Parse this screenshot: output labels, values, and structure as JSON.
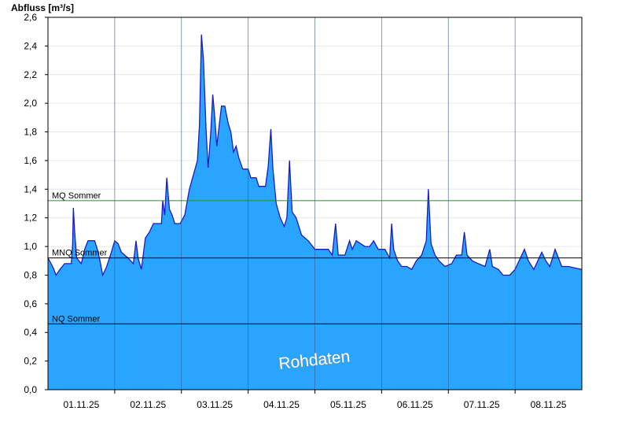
{
  "chart_data": {
    "type": "area",
    "ylabel": "Abfluss [m³/s]",
    "ylim": [
      0,
      2.6
    ],
    "yticks": [
      "0,0",
      "0,2",
      "0,4",
      "0,6",
      "0,8",
      "1,0",
      "1,2",
      "1,4",
      "1,6",
      "1,8",
      "2,0",
      "2,2",
      "2,4",
      "2,6"
    ],
    "xlim": [
      0,
      8
    ],
    "xticks": [
      "01.11.25",
      "02.11.25",
      "03.11.25",
      "04.11.25",
      "05.11.25",
      "06.11.25",
      "07.11.25",
      "08.11.25"
    ],
    "grid": true,
    "watermark": "Rohdaten",
    "colors": {
      "fill": "#2aa5ff",
      "line": "#1a1ac8",
      "mq": "#2e8b2e",
      "mnq": "#000000",
      "nq": "#000000"
    },
    "reference_lines": [
      {
        "name": "MQ Sommer",
        "value": 1.32
      },
      {
        "name": "MNQ Sommer",
        "value": 0.92
      },
      {
        "name": "NQ Sommer",
        "value": 0.46
      }
    ],
    "series": [
      {
        "points": [
          [
            0.0,
            0.92
          ],
          [
            0.08,
            0.85
          ],
          [
            0.12,
            0.8
          ],
          [
            0.18,
            0.84
          ],
          [
            0.25,
            0.88
          ],
          [
            0.35,
            0.88
          ],
          [
            0.37,
            1.02
          ],
          [
            0.38,
            1.27
          ],
          [
            0.4,
            1.1
          ],
          [
            0.43,
            0.92
          ],
          [
            0.5,
            0.88
          ],
          [
            0.55,
            0.98
          ],
          [
            0.6,
            1.04
          ],
          [
            0.7,
            1.04
          ],
          [
            0.74,
            0.98
          ],
          [
            0.78,
            0.9
          ],
          [
            0.82,
            0.8
          ],
          [
            0.88,
            0.86
          ],
          [
            0.95,
            0.96
          ],
          [
            1.0,
            1.04
          ],
          [
            1.05,
            1.02
          ],
          [
            1.1,
            0.96
          ],
          [
            1.2,
            0.92
          ],
          [
            1.28,
            0.88
          ],
          [
            1.32,
            1.04
          ],
          [
            1.35,
            0.92
          ],
          [
            1.4,
            0.84
          ],
          [
            1.46,
            1.06
          ],
          [
            1.52,
            1.1
          ],
          [
            1.58,
            1.16
          ],
          [
            1.7,
            1.16
          ],
          [
            1.72,
            1.32
          ],
          [
            1.75,
            1.22
          ],
          [
            1.78,
            1.48
          ],
          [
            1.82,
            1.26
          ],
          [
            1.86,
            1.22
          ],
          [
            1.9,
            1.16
          ],
          [
            1.98,
            1.16
          ],
          [
            2.05,
            1.22
          ],
          [
            2.12,
            1.4
          ],
          [
            2.18,
            1.5
          ],
          [
            2.24,
            1.6
          ],
          [
            2.27,
            1.85
          ],
          [
            2.3,
            2.48
          ],
          [
            2.33,
            2.3
          ],
          [
            2.37,
            1.8
          ],
          [
            2.4,
            1.55
          ],
          [
            2.44,
            1.8
          ],
          [
            2.47,
            2.06
          ],
          [
            2.5,
            1.9
          ],
          [
            2.53,
            1.7
          ],
          [
            2.57,
            1.86
          ],
          [
            2.6,
            1.98
          ],
          [
            2.65,
            1.98
          ],
          [
            2.7,
            1.86
          ],
          [
            2.74,
            1.8
          ],
          [
            2.78,
            1.66
          ],
          [
            2.82,
            1.7
          ],
          [
            2.86,
            1.62
          ],
          [
            2.92,
            1.54
          ],
          [
            3.0,
            1.54
          ],
          [
            3.04,
            1.48
          ],
          [
            3.12,
            1.48
          ],
          [
            3.16,
            1.42
          ],
          [
            3.26,
            1.42
          ],
          [
            3.3,
            1.56
          ],
          [
            3.34,
            1.82
          ],
          [
            3.37,
            1.55
          ],
          [
            3.42,
            1.3
          ],
          [
            3.48,
            1.2
          ],
          [
            3.54,
            1.14
          ],
          [
            3.58,
            1.2
          ],
          [
            3.62,
            1.6
          ],
          [
            3.66,
            1.24
          ],
          [
            3.72,
            1.2
          ],
          [
            3.8,
            1.08
          ],
          [
            3.9,
            1.04
          ],
          [
            4.0,
            0.98
          ],
          [
            4.08,
            0.98
          ],
          [
            4.2,
            0.98
          ],
          [
            4.26,
            0.94
          ],
          [
            4.31,
            1.16
          ],
          [
            4.35,
            0.94
          ],
          [
            4.45,
            0.94
          ],
          [
            4.52,
            1.04
          ],
          [
            4.56,
            0.98
          ],
          [
            4.62,
            1.04
          ],
          [
            4.75,
            1.0
          ],
          [
            4.82,
            1.0
          ],
          [
            4.88,
            1.04
          ],
          [
            4.95,
            0.98
          ],
          [
            5.05,
            0.98
          ],
          [
            5.12,
            0.92
          ],
          [
            5.15,
            1.16
          ],
          [
            5.18,
            0.98
          ],
          [
            5.24,
            0.9
          ],
          [
            5.3,
            0.86
          ],
          [
            5.38,
            0.86
          ],
          [
            5.45,
            0.84
          ],
          [
            5.52,
            0.9
          ],
          [
            5.6,
            0.94
          ],
          [
            5.67,
            1.04
          ],
          [
            5.7,
            1.4
          ],
          [
            5.74,
            1.02
          ],
          [
            5.8,
            0.94
          ],
          [
            5.86,
            0.9
          ],
          [
            5.95,
            0.86
          ],
          [
            6.05,
            0.88
          ],
          [
            6.12,
            0.94
          ],
          [
            6.2,
            0.94
          ],
          [
            6.24,
            1.1
          ],
          [
            6.28,
            0.94
          ],
          [
            6.36,
            0.9
          ],
          [
            6.45,
            0.88
          ],
          [
            6.55,
            0.86
          ],
          [
            6.62,
            0.98
          ],
          [
            6.66,
            0.86
          ],
          [
            6.75,
            0.84
          ],
          [
            6.82,
            0.8
          ],
          [
            6.92,
            0.8
          ],
          [
            7.0,
            0.84
          ],
          [
            7.08,
            0.92
          ],
          [
            7.14,
            0.98
          ],
          [
            7.2,
            0.9
          ],
          [
            7.28,
            0.84
          ],
          [
            7.34,
            0.9
          ],
          [
            7.4,
            0.96
          ],
          [
            7.46,
            0.9
          ],
          [
            7.52,
            0.86
          ],
          [
            7.56,
            0.92
          ],
          [
            7.6,
            0.98
          ],
          [
            7.65,
            0.92
          ],
          [
            7.7,
            0.86
          ],
          [
            7.8,
            0.86
          ],
          [
            8.0,
            0.84
          ]
        ]
      }
    ]
  }
}
